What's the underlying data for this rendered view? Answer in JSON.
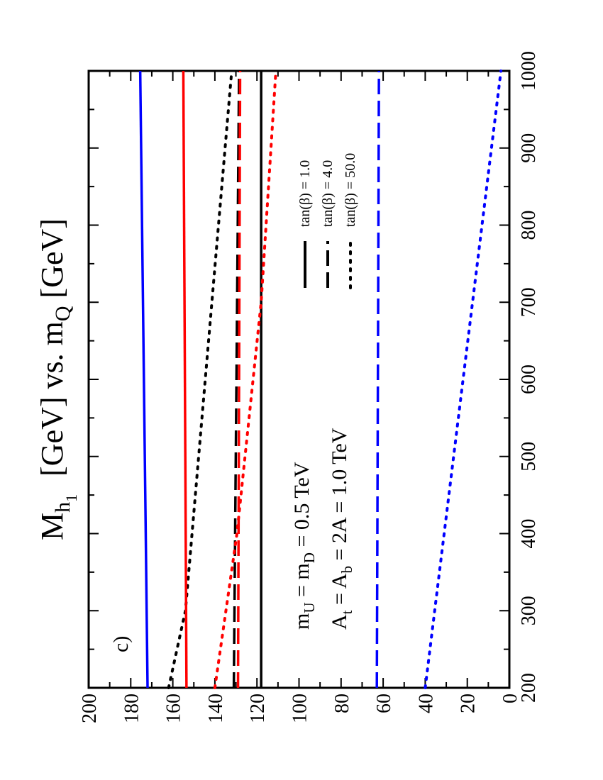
{
  "chart_data": {
    "type": "line",
    "panel_label": "c)",
    "title": {
      "M": "M",
      "h": "h",
      "sub_1": "1",
      "part2": " [GeV] vs. m",
      "sub_Q": "Q",
      "part3": " [GeV]"
    },
    "xlim": [
      200,
      1000
    ],
    "ylim": [
      0,
      200
    ],
    "x_ticks": [
      200,
      300,
      400,
      500,
      600,
      700,
      800,
      900,
      1000
    ],
    "x_tick_labels": [
      "200",
      "300",
      "400",
      "500",
      "600",
      "700",
      "800",
      "900",
      "1000"
    ],
    "y_ticks": [
      0,
      20,
      40,
      60,
      80,
      100,
      120,
      140,
      160,
      180,
      200
    ],
    "y_tick_labels": [
      "0",
      "20",
      "40",
      "60",
      "80",
      "100",
      "120",
      "140",
      "160",
      "180",
      "200"
    ],
    "annotation_line1": {
      "m1": "m",
      "s1": "U",
      "t1": " = m",
      "s2": "D",
      "t2": " = 0.5 TeV"
    },
    "annotation_line2": {
      "a1": "A",
      "s1": "t",
      "t1": " = A",
      "s2": "b",
      "t2": " = 2A = 1.0 TeV"
    },
    "legend": [
      {
        "label": "tan(β) = 1.0",
        "dash": "solid"
      },
      {
        "label": "tan(β) = 4.0",
        "dash": "dashed"
      },
      {
        "label": "tan(β) = 50.0",
        "dash": "dotted"
      }
    ],
    "colors": {
      "black": "#000000",
      "red": "#ff0000",
      "blue": "#0000ff"
    },
    "series": [
      {
        "color": "black",
        "dash": "solid",
        "x": [
          200,
          1000
        ],
        "y": [
          118,
          118
        ]
      },
      {
        "color": "black",
        "dash": "dashed",
        "x": [
          200,
          1000
        ],
        "y": [
          131,
          128.5
        ]
      },
      {
        "color": "black",
        "dash": "dotted",
        "x": [
          200,
          300,
          1000
        ],
        "y": [
          162,
          154,
          132
        ]
      },
      {
        "color": "red",
        "dash": "solid",
        "x": [
          200,
          1000
        ],
        "y": [
          153.5,
          155
        ]
      },
      {
        "color": "red",
        "dash": "dashed",
        "x": [
          200,
          1000
        ],
        "y": [
          129,
          128
        ]
      },
      {
        "color": "red",
        "dash": "dotted",
        "x": [
          200,
          400,
          700,
          1000
        ],
        "y": [
          140,
          129.5,
          118,
          111
        ]
      },
      {
        "color": "blue",
        "dash": "solid",
        "x": [
          200,
          1000
        ],
        "y": [
          172,
          175.5
        ]
      },
      {
        "color": "blue",
        "dash": "dashed",
        "x": [
          200,
          1000
        ],
        "y": [
          63,
          62
        ]
      },
      {
        "color": "blue",
        "dash": "dotted",
        "x": [
          200,
          1000
        ],
        "y": [
          40,
          4
        ]
      }
    ]
  }
}
